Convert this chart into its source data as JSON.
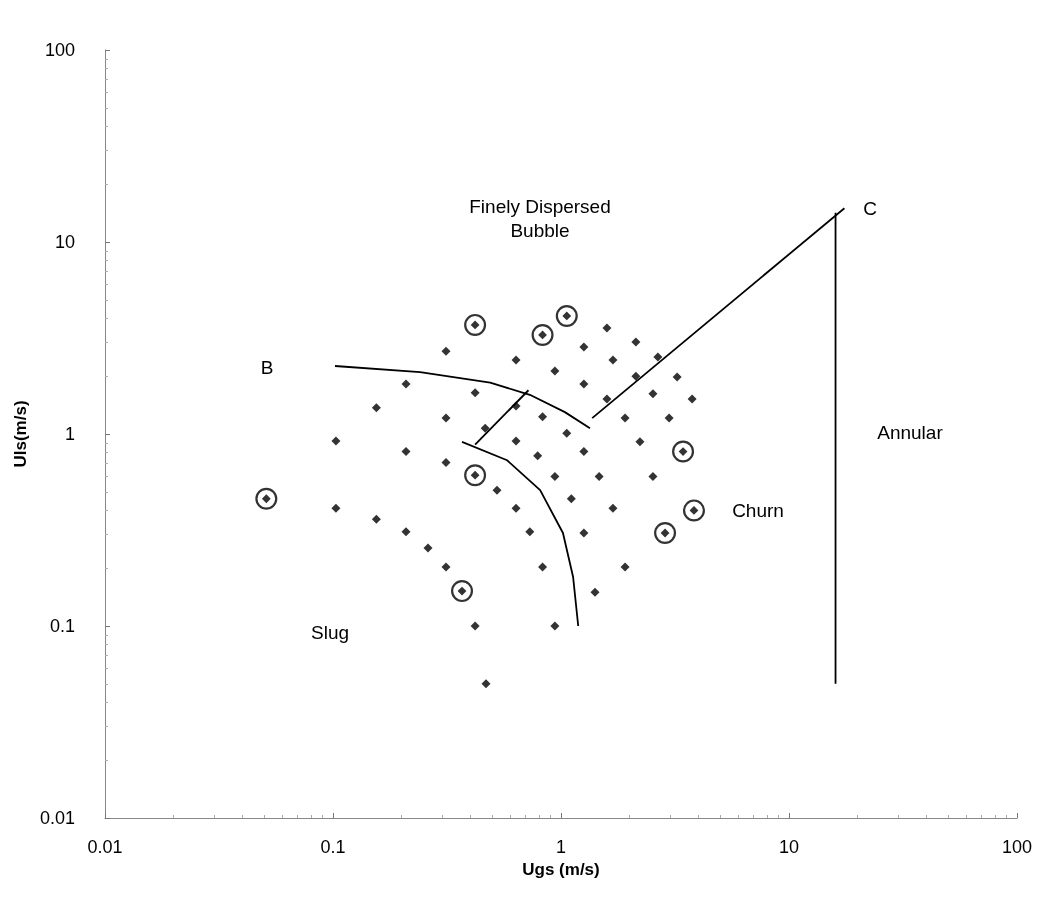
{
  "chart_data": {
    "type": "scatter",
    "xlabel": "Ugs (m/s)",
    "ylabel": "Uls(m/s)",
    "log": "xy",
    "grid": false,
    "xlim": [
      0.01,
      100
    ],
    "xticks": [
      0.01,
      0.1,
      1,
      10,
      100
    ],
    "ylim": [
      0.01,
      100
    ],
    "yticks": [
      0.01,
      0.1,
      1,
      10,
      100
    ],
    "series": [
      {
        "marker": "diamond",
        "color": "#000000",
        "x": [
          0.103,
          0.103,
          0.155,
          0.155,
          0.209,
          0.209,
          0.209,
          0.261,
          0.313,
          0.313,
          0.313,
          0.313,
          0.42,
          0.42,
          0.469,
          0.465,
          0.524,
          0.635,
          0.635,
          0.635,
          0.635,
          0.73,
          0.79,
          0.83,
          0.83,
          0.94,
          0.94,
          0.94,
          1.06,
          1.11,
          1.26,
          1.26,
          1.26,
          1.26,
          1.41,
          1.47,
          1.59,
          1.59,
          1.69,
          1.69,
          1.91,
          1.91,
          2.13,
          2.13,
          2.22,
          2.53,
          2.53,
          2.66,
          2.98,
          3.23,
          3.76
        ],
        "values": [
          0.92,
          0.41,
          1.37,
          0.36,
          1.82,
          0.81,
          0.31,
          0.255,
          2.7,
          1.21,
          0.71,
          0.203,
          1.64,
          0.1,
          0.05,
          1.07,
          0.51,
          2.43,
          1.4,
          0.92,
          0.41,
          0.31,
          0.77,
          1.23,
          0.203,
          2.13,
          0.6,
          0.1,
          1.01,
          0.46,
          2.84,
          1.82,
          0.81,
          0.305,
          0.15,
          0.6,
          3.57,
          1.52,
          2.43,
          0.41,
          1.21,
          0.203,
          3.01,
          2.0,
          0.91,
          1.62,
          0.6,
          2.52,
          1.21,
          1.98,
          1.52
        ]
      },
      {
        "marker": "circle",
        "color": "#000000",
        "x": [
          0.051,
          0.368,
          0.42,
          0.42,
          0.83,
          1.06,
          3.43,
          3.83,
          2.86
        ],
        "values": [
          0.46,
          0.152,
          3.7,
          0.61,
          3.28,
          4.12,
          0.81,
          0.4,
          0.305
        ]
      },
      {
        "type": "line",
        "marker": "none",
        "color": "#000000",
        "x": [
          0.102,
          0.241,
          0.489,
          0.73,
          1.04,
          1.34
        ],
        "values": [
          2.26,
          2.1,
          1.85,
          1.6,
          1.3,
          1.07
        ]
      },
      {
        "type": "line",
        "marker": "none",
        "color": "#000000",
        "x": [
          0.368,
          0.58,
          0.81,
          1.02,
          1.13,
          1.19
        ],
        "values": [
          0.91,
          0.73,
          0.51,
          0.305,
          0.18,
          0.1
        ]
      },
      {
        "type": "line",
        "marker": "none",
        "color": "#000000",
        "x": [
          0.42,
          0.72
        ],
        "values": [
          0.88,
          1.69
        ]
      },
      {
        "type": "line",
        "marker": "none",
        "color": "#000000",
        "x": [
          1.37,
          17.5
        ],
        "values": [
          1.21,
          15
        ]
      },
      {
        "type": "line",
        "marker": "none",
        "color": "#000000",
        "x": [
          16,
          16
        ],
        "values": [
          14.2,
          0.05
        ]
      }
    ],
    "annotations": [
      "Finely Dispersed\nBubble",
      "B",
      "C",
      "Annular",
      "Churn",
      "Slug"
    ]
  }
}
